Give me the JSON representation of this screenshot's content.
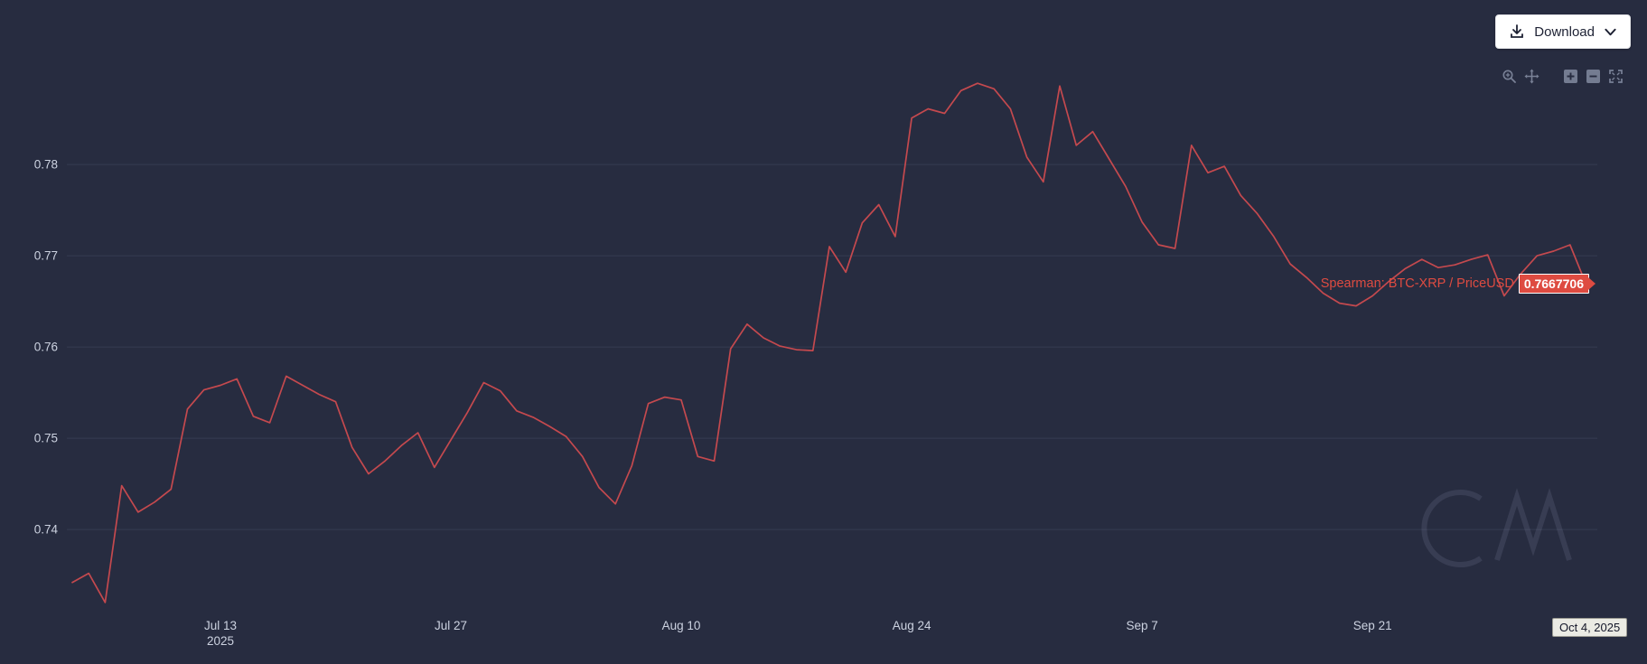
{
  "colors": {
    "background": "#272c40",
    "line": "#c4494e",
    "accent": "#de4b41",
    "grid": "#363b52",
    "tick_label": "#ccd2e0",
    "button_bg": "#ffffff",
    "button_text": "#1d2133"
  },
  "toolbar": {
    "download_label": "Download",
    "icons": [
      "download-icon",
      "chevron-down-icon"
    ]
  },
  "modebar": {
    "icons": [
      "zoom-icon",
      "pan-icon",
      "zoom-in-icon",
      "zoom-out-icon",
      "autoscale-icon"
    ]
  },
  "hover_label": {
    "series_text": "Spearman: BTC-XRP / PriceUSD",
    "value": "0.7667706"
  },
  "x_axis_tooltip": "Oct 4, 2025",
  "watermark": "CM",
  "chart_data": {
    "type": "line",
    "title": "",
    "xlabel": "",
    "ylabel": "",
    "grid": "horizontal",
    "legend": "none",
    "x_start": "2025-07-04",
    "x_end": "2025-10-04",
    "frequency": "daily",
    "ylim": [
      0.7307,
      0.7911
    ],
    "y_ticks": [
      0.74,
      0.75,
      0.76,
      0.77,
      0.78
    ],
    "x_ticks": [
      {
        "index": 9,
        "label": "Jul 13",
        "sublabel": "2025"
      },
      {
        "index": 23,
        "label": "Jul 27"
      },
      {
        "index": 37,
        "label": "Aug 10"
      },
      {
        "index": 51,
        "label": "Aug 24"
      },
      {
        "index": 65,
        "label": "Sep 7"
      },
      {
        "index": 79,
        "label": "Sep 21"
      }
    ],
    "last_point": {
      "date": "Oct 4, 2025",
      "value": 0.7667706
    },
    "series": [
      {
        "name": "Spearman: BTC-XRP / PriceUSD",
        "color": "#c4494e",
        "values": [
          0.7342,
          0.7352,
          0.732,
          0.7448,
          0.7419,
          0.743,
          0.7444,
          0.7532,
          0.7553,
          0.7558,
          0.7565,
          0.7524,
          0.7517,
          0.7568,
          0.7558,
          0.7548,
          0.754,
          0.749,
          0.7461,
          0.7475,
          0.7492,
          0.7506,
          0.7468,
          0.7498,
          0.7528,
          0.7561,
          0.7552,
          0.753,
          0.7523,
          0.7513,
          0.7502,
          0.748,
          0.7446,
          0.7428,
          0.747,
          0.7538,
          0.7545,
          0.7542,
          0.748,
          0.7475,
          0.7598,
          0.7625,
          0.761,
          0.7601,
          0.7597,
          0.7596,
          0.771,
          0.7682,
          0.7736,
          0.7756,
          0.7721,
          0.7851,
          0.7861,
          0.7856,
          0.7881,
          0.7889,
          0.7883,
          0.7861,
          0.7808,
          0.7781,
          0.7886,
          0.7821,
          0.7836,
          0.7806,
          0.7776,
          0.7737,
          0.7712,
          0.7708,
          0.7821,
          0.7791,
          0.7798,
          0.7766,
          0.7746,
          0.7721,
          0.7691,
          0.7676,
          0.7659,
          0.7648,
          0.7645,
          0.7656,
          0.7672,
          0.7686,
          0.7696,
          0.7687,
          0.769,
          0.7696,
          0.7701,
          0.7656,
          0.768,
          0.77,
          0.7705,
          0.7712,
          0.7667706
        ]
      }
    ]
  }
}
